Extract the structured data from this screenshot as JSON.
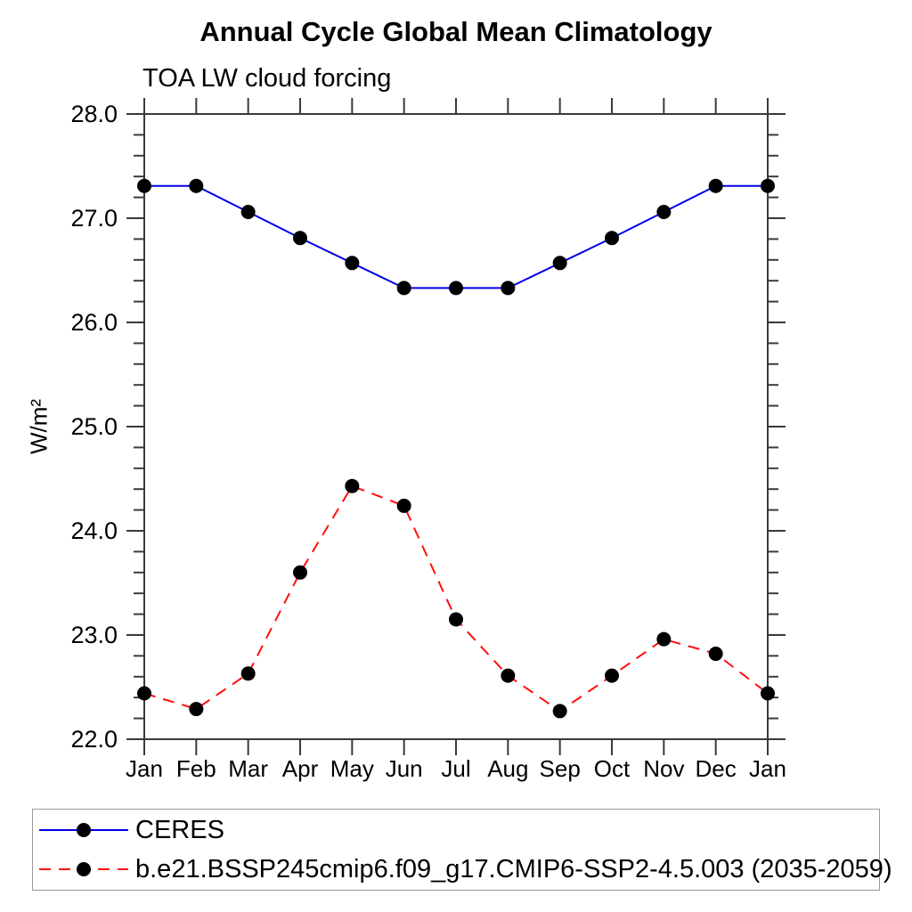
{
  "header": {
    "title": "Annual Cycle Global Mean Climatology",
    "subtitle": "TOA LW cloud forcing"
  },
  "chart_data": {
    "type": "line",
    "title": "Annual Cycle Global Mean Climatology",
    "subtitle": "TOA LW cloud forcing",
    "xlabel": "",
    "ylabel": "W/m²",
    "categories": [
      "Jan",
      "Feb",
      "Mar",
      "Apr",
      "May",
      "Jun",
      "Jul",
      "Aug",
      "Sep",
      "Oct",
      "Nov",
      "Dec",
      "Jan"
    ],
    "ylim": [
      22.0,
      28.0
    ],
    "ytick_labels": [
      "22.0",
      "23.0",
      "24.0",
      "25.0",
      "26.0",
      "27.0",
      "28.0"
    ],
    "ytick_values": [
      22.0,
      23.0,
      24.0,
      25.0,
      26.0,
      27.0,
      28.0
    ],
    "minor_tick_interval": 0.2,
    "grid": false,
    "frame_color": "#3a3a3a",
    "marker_color": "#000000",
    "legend_position": "bottom",
    "series": [
      {
        "name": "CERES",
        "color": "#0000e6",
        "line_style": "solid",
        "marker": "filled-circle",
        "values": [
          27.31,
          27.31,
          27.06,
          26.81,
          26.57,
          26.33,
          26.33,
          26.33,
          26.57,
          26.81,
          27.06,
          27.31,
          27.31
        ]
      },
      {
        "name": "b.e21.BSSP245cmip6.f09_g17.CMIP6-SSP2-4.5.003 (2035-2059)",
        "color": "#ff0e0e",
        "line_style": "dashed",
        "marker": "filled-circle",
        "values": [
          22.44,
          22.29,
          22.63,
          23.6,
          24.43,
          24.24,
          23.15,
          22.61,
          22.27,
          22.61,
          22.96,
          22.82,
          22.44
        ]
      }
    ]
  }
}
